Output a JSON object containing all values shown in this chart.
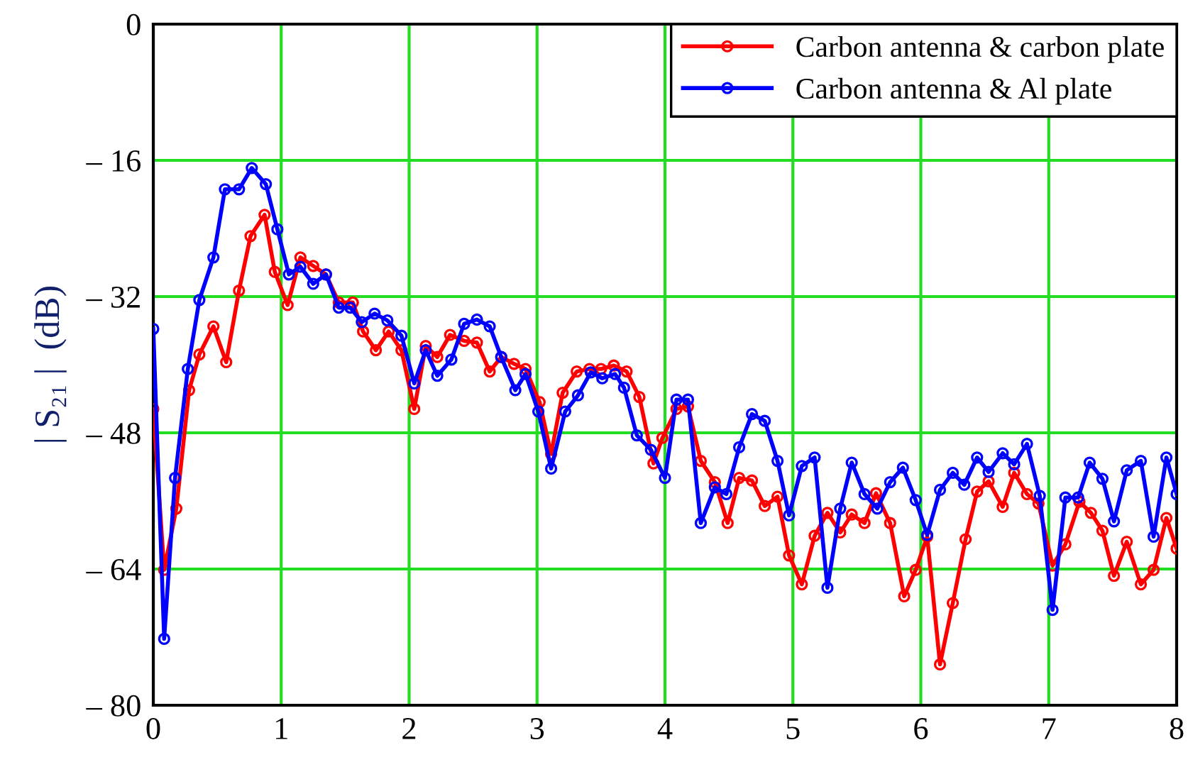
{
  "chart_data": {
    "type": "line",
    "ylabel": "| S₂₁ |  (dB)",
    "xlim": [
      0,
      8
    ],
    "ylim": [
      -80,
      0
    ],
    "xticks": [
      0,
      1,
      2,
      3,
      4,
      5,
      6,
      7,
      8
    ],
    "yticks": [
      {
        "value": -80,
        "label": "– 80"
      },
      {
        "value": -64,
        "label": "– 64"
      },
      {
        "value": -48,
        "label": "– 48"
      },
      {
        "value": -32,
        "label": "– 32"
      },
      {
        "value": -16,
        "label": "– 16"
      },
      0
    ],
    "grid": true,
    "legend": "top right",
    "marker": "circle",
    "line_style": "solid",
    "series": [
      {
        "name": "Carbon antenna & carbon plate",
        "color": "#ff0000",
        "x": [
          0,
          0.085,
          0.18,
          0.28,
          0.36,
          0.47,
          0.57,
          0.67,
          0.76,
          0.87,
          0.95,
          1.05,
          1.15,
          1.25,
          1.35,
          1.45,
          1.56,
          1.64,
          1.74,
          1.84,
          1.94,
          2.04,
          2.13,
          2.22,
          2.32,
          2.43,
          2.53,
          2.63,
          2.72,
          2.82,
          2.91,
          3.02,
          3.11,
          3.2,
          3.31,
          3.41,
          3.5,
          3.6,
          3.7,
          3.8,
          3.91,
          3.98,
          4.09,
          4.18,
          4.28,
          4.39,
          4.49,
          4.58,
          4.68,
          4.78,
          4.88,
          4.97,
          5.07,
          5.17,
          5.27,
          5.37,
          5.46,
          5.56,
          5.65,
          5.76,
          5.87,
          5.96,
          6.05,
          6.15,
          6.25,
          6.35,
          6.44,
          6.53,
          6.64,
          6.73,
          6.83,
          6.92,
          7.03,
          7.13,
          7.24,
          7.33,
          7.42,
          7.51,
          7.61,
          7.72,
          7.82,
          7.92,
          8.0
        ],
        "values": [
          -45.2,
          -64.1,
          -56.9,
          -43,
          -38.8,
          -35.5,
          -39.7,
          -31.3,
          -24.9,
          -22.4,
          -29.1,
          -33,
          -27.4,
          -28.4,
          -29.4,
          -32.7,
          -32.7,
          -36.1,
          -38.3,
          -36.1,
          -38.3,
          -45.2,
          -37.8,
          -39.1,
          -36.5,
          -37.2,
          -37.4,
          -40.8,
          -39.1,
          -39.9,
          -40.5,
          -44.4,
          -50.5,
          -43.3,
          -40.8,
          -40.5,
          -40.5,
          -40.1,
          -40.8,
          -43.8,
          -51.6,
          -48.6,
          -45.2,
          -44.9,
          -51.3,
          -53.8,
          -58.6,
          -53.3,
          -53.6,
          -56.6,
          -55.5,
          -62.4,
          -65.8,
          -60.1,
          -57.4,
          -59.7,
          -57.6,
          -58.6,
          -55.1,
          -58.6,
          -67.2,
          -64.1,
          -60.2,
          -75.2,
          -68,
          -60.5,
          -54.9,
          -53.7,
          -56.7,
          -52.7,
          -55.2,
          -56.3,
          -63.6,
          -61.1,
          -56.1,
          -57.4,
          -59.5,
          -64.8,
          -60.8,
          -65.8,
          -64.1,
          -58,
          -61.6
        ]
      },
      {
        "name": "Carbon antenna & Al plate",
        "color": "#0000ff",
        "x": [
          0,
          0.085,
          0.17,
          0.27,
          0.36,
          0.47,
          0.56,
          0.67,
          0.77,
          0.88,
          0.97,
          1.06,
          1.15,
          1.25,
          1.35,
          1.45,
          1.54,
          1.63,
          1.73,
          1.83,
          1.94,
          2.04,
          2.13,
          2.22,
          2.33,
          2.43,
          2.53,
          2.63,
          2.72,
          2.83,
          2.91,
          3.01,
          3.11,
          3.22,
          3.32,
          3.42,
          3.51,
          3.61,
          3.68,
          3.78,
          3.89,
          4.0,
          4.09,
          4.18,
          4.28,
          4.39,
          4.48,
          4.58,
          4.68,
          4.78,
          4.88,
          4.97,
          5.07,
          5.17,
          5.27,
          5.37,
          5.46,
          5.56,
          5.66,
          5.76,
          5.86,
          5.96,
          6.05,
          6.15,
          6.25,
          6.34,
          6.44,
          6.53,
          6.64,
          6.73,
          6.83,
          6.93,
          7.03,
          7.13,
          7.23,
          7.32,
          7.42,
          7.51,
          7.61,
          7.72,
          7.82,
          7.92,
          8.0
        ],
        "values": [
          -35.8,
          -72.2,
          -53.3,
          -40.5,
          -32.4,
          -27.4,
          -19.4,
          -19.4,
          -16.9,
          -18.8,
          -24.1,
          -29.4,
          -28.5,
          -30.5,
          -29.4,
          -33.3,
          -33.3,
          -35,
          -34,
          -34.8,
          -36.6,
          -42.2,
          -38.3,
          -41.3,
          -39.4,
          -35.2,
          -34.7,
          -35.5,
          -39.1,
          -43,
          -41.1,
          -45.5,
          -52.2,
          -45.5,
          -43.6,
          -40.9,
          -41.6,
          -41.1,
          -42.7,
          -48.3,
          -50,
          -53.3,
          -44.1,
          -44.1,
          -58.6,
          -54.4,
          -55.2,
          -49.7,
          -45.8,
          -46.6,
          -51.3,
          -57.7,
          -51.9,
          -50.9,
          -66.2,
          -56.9,
          -51.5,
          -55.2,
          -56.9,
          -53.8,
          -52.1,
          -55.9,
          -60,
          -54.7,
          -52.7,
          -54.1,
          -50.9,
          -52.6,
          -50.4,
          -51.7,
          -49.3,
          -55.4,
          -68.8,
          -55.6,
          -55.6,
          -51.5,
          -53.4,
          -58.4,
          -52.4,
          -51.3,
          -60.2,
          -50.9,
          -55.2
        ]
      }
    ]
  }
}
